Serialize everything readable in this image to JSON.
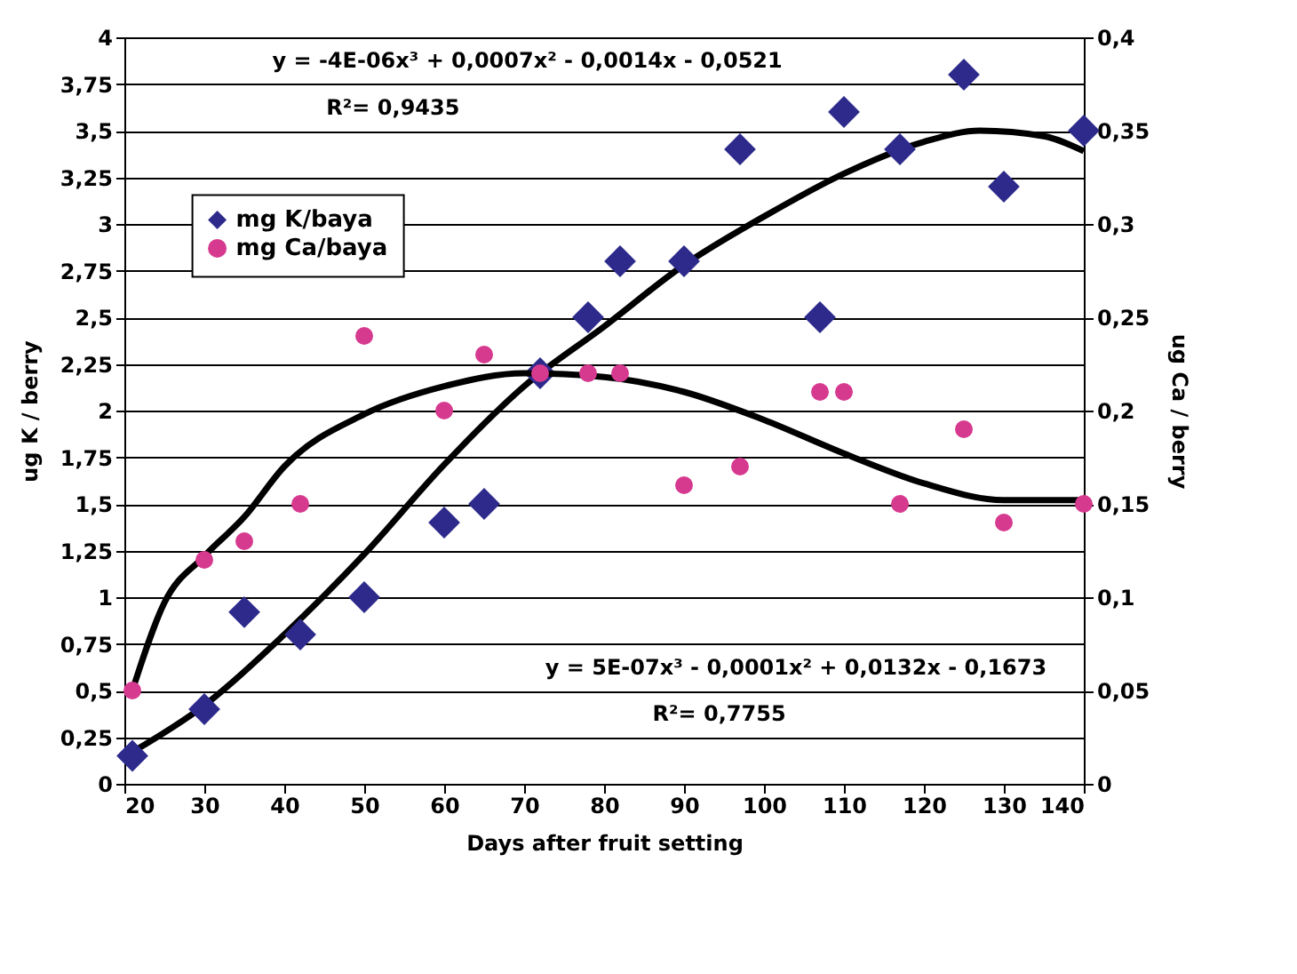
{
  "chart_data": {
    "type": "scatter",
    "xlabel": "Days after fruit setting",
    "ylabel": "ug K / berry",
    "y2label": "ug Ca / berry",
    "xlim": [
      20,
      140
    ],
    "xticks": [
      20,
      30,
      40,
      50,
      60,
      70,
      80,
      90,
      100,
      110,
      120,
      130,
      140
    ],
    "ylim": [
      0,
      4
    ],
    "yticks": [
      0,
      {
        "value": 0.25,
        "label": "0,25"
      },
      {
        "value": 0.5,
        "label": "0,5"
      },
      {
        "value": 0.75,
        "label": "0,75"
      },
      1,
      {
        "value": 1.25,
        "label": "1,25"
      },
      {
        "value": 1.5,
        "label": "1,5"
      },
      {
        "value": 1.75,
        "label": "1,75"
      },
      2,
      {
        "value": 2.25,
        "label": "2,25"
      },
      {
        "value": 2.5,
        "label": "2,5"
      },
      {
        "value": 2.75,
        "label": "2,75"
      },
      3,
      {
        "value": 3.25,
        "label": "3,25"
      },
      {
        "value": 3.5,
        "label": "3,5"
      },
      {
        "value": 3.75,
        "label": "3,75"
      },
      4
    ],
    "y2lim": [
      0,
      0.4
    ],
    "y2ticks": [
      0,
      {
        "value": 0.05,
        "label": "0,05"
      },
      {
        "value": 0.1,
        "label": "0,1"
      },
      {
        "value": 0.15,
        "label": "0,15"
      },
      {
        "value": 0.2,
        "label": "0,2"
      },
      {
        "value": 0.25,
        "label": "0,25"
      },
      {
        "value": 0.3,
        "label": "0,3"
      },
      {
        "value": 0.35,
        "label": "0,35"
      },
      {
        "value": 0.4,
        "label": "0,4"
      }
    ],
    "grid": "y",
    "legend": "top left",
    "annotations": [
      "y = -4E-06x³ + 0,0007x² - 0,0014x - 0,0521",
      "R²= 0,9435",
      "y = 5E-07x³ - 0,0001x² + 0,0132x - 0,1673",
      "R²= 0,7755"
    ],
    "series": [
      {
        "name": "mg K/baya",
        "color": "#2e2a8c",
        "marker": "diamond",
        "x": [
          21,
          30,
          35,
          42,
          50,
          60,
          65,
          72,
          78,
          82,
          90,
          97,
          107,
          110,
          117,
          125,
          130,
          140
        ],
        "values": [
          0.15,
          0.4,
          0.92,
          0.8,
          1.0,
          1.4,
          1.5,
          2.2,
          2.5,
          2.8,
          2.8,
          3.4,
          2.5,
          3.6,
          3.4,
          3.8,
          3.2,
          3.5
        ]
      },
      {
        "name": "mg Ca/baya",
        "color": "#d63a8f",
        "marker": "circle",
        "axis": "y2",
        "x": [
          21,
          30,
          35,
          42,
          50,
          60,
          65,
          72,
          78,
          82,
          90,
          97,
          107,
          110,
          117,
          125,
          130,
          140
        ],
        "values": [
          0.05,
          0.12,
          0.13,
          0.15,
          0.24,
          0.2,
          0.23,
          0.22,
          0.22,
          0.22,
          0.16,
          0.17,
          0.21,
          0.21,
          0.15,
          0.19,
          0.14,
          0.15
        ]
      },
      {
        "type": "line",
        "color": "#000000",
        "marker": "none",
        "x": [
          21,
          30,
          40,
          50,
          60,
          70,
          80,
          90,
          100,
          110,
          120,
          127,
          135,
          140
        ],
        "values": [
          0.17,
          0.42,
          0.8,
          1.23,
          1.71,
          2.13,
          2.45,
          2.78,
          3.04,
          3.27,
          3.44,
          3.5,
          3.47,
          3.39
        ]
      },
      {
        "type": "line",
        "color": "#000000",
        "marker": "none",
        "axis": "y2",
        "x": [
          21,
          25,
          30,
          35,
          40,
          50,
          60,
          70,
          80,
          90,
          100,
          110,
          120,
          130,
          140
        ],
        "values": [
          0.05,
          0.097,
          0.122,
          0.143,
          0.17,
          0.198,
          0.213,
          0.22,
          0.218,
          0.21,
          0.195,
          0.177,
          0.161,
          0.152,
          0.152
        ]
      }
    ]
  }
}
